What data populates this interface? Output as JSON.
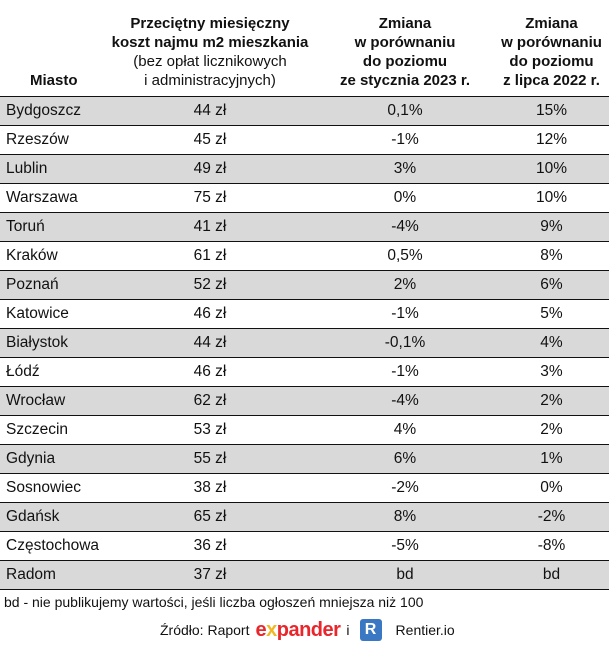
{
  "header": {
    "city": "Miasto",
    "cost_lines": [
      "Przeciętny miesięczny",
      "koszt najmu m2 mieszkania"
    ],
    "cost_sub": [
      "(bez opłat licznikowych",
      "i administracyjnych)"
    ],
    "jan_lines": [
      "Zmiana",
      "w porównaniu",
      "do poziomu",
      "ze stycznia 2023 r."
    ],
    "jul_lines": [
      "Zmiana",
      "w porównaniu",
      "do poziomu",
      "z lipca 2022 r."
    ]
  },
  "rows": [
    [
      "Bydgoszcz",
      "44 zł",
      "0,1%",
      "15%"
    ],
    [
      "Rzeszów",
      "45 zł",
      "-1%",
      "12%"
    ],
    [
      "Lublin",
      "49 zł",
      "3%",
      "10%"
    ],
    [
      "Warszawa",
      "75 zł",
      "0%",
      "10%"
    ],
    [
      "Toruń",
      "41 zł",
      "-4%",
      "9%"
    ],
    [
      "Kraków",
      "61 zł",
      "0,5%",
      "8%"
    ],
    [
      "Poznań",
      "52 zł",
      "2%",
      "6%"
    ],
    [
      "Katowice",
      "46 zł",
      "-1%",
      "5%"
    ],
    [
      "Białystok",
      "44 zł",
      "-0,1%",
      "4%"
    ],
    [
      "Łódź",
      "46 zł",
      "-1%",
      "3%"
    ],
    [
      "Wrocław",
      "62 zł",
      "-4%",
      "2%"
    ],
    [
      "Szczecin",
      "53 zł",
      "4%",
      "2%"
    ],
    [
      "Gdynia",
      "55 zł",
      "6%",
      "1%"
    ],
    [
      "Sosnowiec",
      "38 zł",
      "-2%",
      "0%"
    ],
    [
      "Gdańsk",
      "65 zł",
      "8%",
      "-2%"
    ],
    [
      "Częstochowa",
      "36 zł",
      "-5%",
      "-8%"
    ],
    [
      "Radom",
      "37 zł",
      "bd",
      "bd"
    ]
  ],
  "note": "bd - nie publikujemy wartości, jeśli liczba ogłoszeń mniejsza niż 100",
  "source": {
    "label": "Źródło: Raport",
    "logo1": "expander",
    "conj": "i",
    "logo2_letter": "R",
    "logo2": "Rentier.io"
  },
  "colors": {
    "stripe": "#d9d9d9",
    "expander_red": "#e8262b",
    "rentier_blue": "#3a78c3"
  }
}
